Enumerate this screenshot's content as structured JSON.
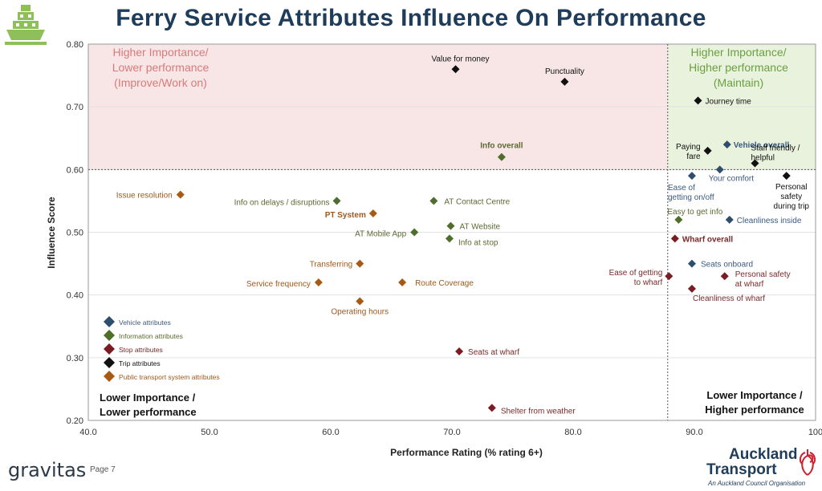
{
  "page": {
    "title": "Ferry Service Attributes Influence On Performance",
    "brand": "gravitas",
    "page_label": "Page 7",
    "logo": {
      "line1": "Auckland",
      "line2": "Transport",
      "subtitle": "An Auckland Council Organisation"
    }
  },
  "colors": {
    "vehicle": "#2e4e6e",
    "information": "#4e6e2a",
    "stop": "#7a1c24",
    "trip": "#111111",
    "pt_system": "#a85a14",
    "label_vehicle": "#3a5a82",
    "label_information": "#5a6a30",
    "label_stop": "#7a2a2a",
    "label_pt": "#a0581a",
    "zone_improve": "#f8e6e6",
    "zone_maintain": "#e8f2dc",
    "zone_improve_text": "#d87a7a",
    "zone_maintain_text": "#6aa040",
    "ferry_icon": "#8fbf5a"
  },
  "chart_data": {
    "type": "scatter",
    "xlabel": "Performance Rating (% rating 6+)",
    "ylabel": "Influence Score",
    "xlim": [
      40,
      100
    ],
    "ylim": [
      0.2,
      0.8
    ],
    "xticks": [
      "40.0",
      "50.0",
      "60.0",
      "70.0",
      "80.0",
      "90.0",
      "100"
    ],
    "yticks": [
      "0.20",
      "0.30",
      "0.40",
      "0.50",
      "0.60",
      "0.70",
      "0.80"
    ],
    "grid": true,
    "threshold_x": 87.8,
    "threshold_y": 0.6,
    "quadrants": {
      "top_left": [
        "Higher Importance/",
        "Lower performance",
        "(Improve/Work on)"
      ],
      "top_right": [
        "Higher Importance/",
        "Higher performance",
        "(Maintain)"
      ],
      "bottom_left": [
        "Lower Importance /",
        "Lower performance"
      ],
      "bottom_right": [
        "Lower Importance /",
        "Higher performance"
      ]
    },
    "legend": [
      {
        "label": "Vehicle attributes",
        "group": "vehicle"
      },
      {
        "label": "Information attributes",
        "group": "information"
      },
      {
        "label": "Stop attributes",
        "group": "stop"
      },
      {
        "label": "Trip attributes",
        "group": "trip"
      },
      {
        "label": "Public transport system attributes",
        "group": "pt_system"
      }
    ],
    "legend_placement": "bottom-left",
    "points": [
      {
        "label": "Value for money",
        "x": 70.3,
        "y": 0.76,
        "group": "trip"
      },
      {
        "label": "Punctuality",
        "x": 79.3,
        "y": 0.74,
        "group": "trip"
      },
      {
        "label": "Journey time",
        "x": 90.3,
        "y": 0.71,
        "group": "trip"
      },
      {
        "label": "Info overall",
        "x": 74.1,
        "y": 0.62,
        "group": "information",
        "bold": true
      },
      {
        "label": "Vehicle overall",
        "x": 92.7,
        "y": 0.64,
        "group": "vehicle",
        "bold": true
      },
      {
        "label": "Paying fare",
        "x": 91.1,
        "y": 0.63,
        "group": "trip"
      },
      {
        "label": "Staff friendly / helpful",
        "x": 95.0,
        "y": 0.61,
        "group": "trip"
      },
      {
        "label": "Your comfort",
        "x": 92.1,
        "y": 0.6,
        "group": "vehicle"
      },
      {
        "label": "Ease of getting on/off",
        "x": 89.8,
        "y": 0.59,
        "group": "vehicle"
      },
      {
        "label": "Personal safety during trip",
        "x": 97.6,
        "y": 0.59,
        "group": "trip"
      },
      {
        "label": "Issue resolution",
        "x": 47.6,
        "y": 0.56,
        "group": "pt_system"
      },
      {
        "label": "Info on delays / disruptions",
        "x": 60.5,
        "y": 0.55,
        "group": "information"
      },
      {
        "label": "AT Contact Centre",
        "x": 68.5,
        "y": 0.55,
        "group": "information"
      },
      {
        "label": "PT System",
        "x": 63.5,
        "y": 0.53,
        "group": "pt_system",
        "bold": true
      },
      {
        "label": "AT Website",
        "x": 69.9,
        "y": 0.51,
        "group": "information"
      },
      {
        "label": "AT Mobile App",
        "x": 66.9,
        "y": 0.5,
        "group": "information"
      },
      {
        "label": "Info at stop",
        "x": 69.8,
        "y": 0.49,
        "group": "information"
      },
      {
        "label": "Easy to get info",
        "x": 88.7,
        "y": 0.52,
        "group": "information"
      },
      {
        "label": "Cleanliness inside",
        "x": 92.9,
        "y": 0.52,
        "group": "vehicle"
      },
      {
        "label": "Wharf overall",
        "x": 88.4,
        "y": 0.49,
        "group": "stop",
        "bold": true
      },
      {
        "label": "Transferring",
        "x": 62.4,
        "y": 0.45,
        "group": "pt_system"
      },
      {
        "label": "Seats onboard",
        "x": 89.8,
        "y": 0.45,
        "group": "vehicle"
      },
      {
        "label": "Service frequency",
        "x": 59.0,
        "y": 0.42,
        "group": "pt_system"
      },
      {
        "label": "Route Coverage",
        "x": 65.9,
        "y": 0.42,
        "group": "pt_system"
      },
      {
        "label": "Ease of getting to wharf",
        "x": 87.9,
        "y": 0.43,
        "group": "stop"
      },
      {
        "label": "Personal safety at wharf",
        "x": 92.5,
        "y": 0.43,
        "group": "stop"
      },
      {
        "label": "Cleanliness of wharf",
        "x": 89.8,
        "y": 0.41,
        "group": "stop"
      },
      {
        "label": "Operating hours",
        "x": 62.4,
        "y": 0.39,
        "group": "pt_system"
      },
      {
        "label": "Seats at wharf",
        "x": 70.6,
        "y": 0.31,
        "group": "stop"
      },
      {
        "label": "Shelter from weather",
        "x": 73.3,
        "y": 0.22,
        "group": "stop"
      }
    ]
  }
}
